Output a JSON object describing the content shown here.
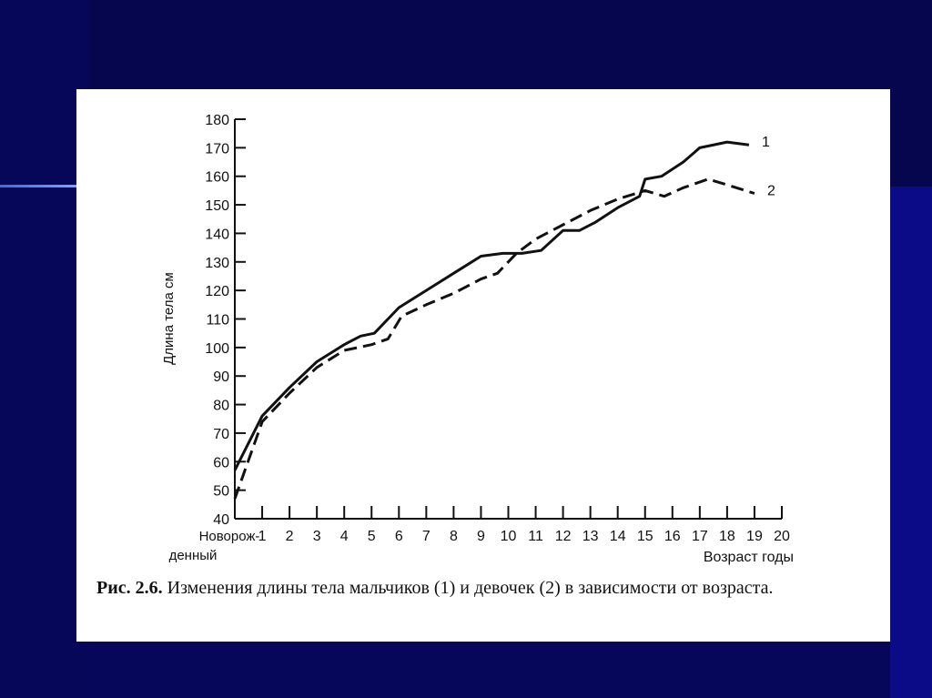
{
  "chart_data": {
    "type": "line",
    "ylabel": "Длина тела  см",
    "xlabel": "Возраст  годы",
    "ylim": [
      40,
      180
    ],
    "xlim": [
      0,
      20
    ],
    "yticks": [
      40,
      50,
      60,
      70,
      80,
      90,
      100,
      110,
      120,
      130,
      140,
      150,
      160,
      170,
      180
    ],
    "xtick_labels": [
      "1",
      "2",
      "3",
      "4",
      "5",
      "6",
      "7",
      "8",
      "9",
      "10",
      "11",
      "12",
      "13",
      "14",
      "15",
      "16",
      "17",
      "18",
      "19",
      "20"
    ],
    "x0_label_line1": "Новорож-",
    "x0_label_line2": "денный",
    "series": [
      {
        "name": "1",
        "style": "solid",
        "x": [
          0,
          1,
          2,
          3,
          4,
          4.6,
          5.1,
          6,
          7,
          8,
          9,
          9.8,
          10.5,
          11.2,
          12,
          12.6,
          13.2,
          14,
          14.8,
          15,
          15.6,
          16.4,
          17,
          18,
          18.8
        ],
        "y": [
          57,
          76,
          86,
          95,
          101,
          104,
          105,
          114,
          120,
          126,
          132,
          133,
          133,
          134,
          141,
          141,
          144,
          149,
          153,
          159,
          160,
          165,
          170,
          172,
          171
        ]
      },
      {
        "name": "2",
        "style": "dashed",
        "x": [
          0,
          1,
          2,
          3,
          4,
          5,
          5.6,
          6.1,
          7,
          8,
          9,
          9.6,
          10.3,
          11,
          12,
          13,
          14,
          15,
          15.7,
          16.4,
          17.3,
          18,
          19
        ],
        "y": [
          47,
          74,
          84,
          93,
          99,
          101,
          103,
          111,
          115,
          119,
          124,
          126,
          133,
          138,
          143,
          148,
          152,
          155,
          153,
          156,
          159,
          157,
          154
        ]
      }
    ]
  },
  "caption": {
    "prefix": "Рис. 2.6.",
    "text": "Изменения длины тела мальчиков (1) и девочек (2) в зависимости от возраста."
  },
  "colors": {
    "slide_background": "#0a0a7a",
    "panel": "#ffffff",
    "ink": "#111111"
  }
}
